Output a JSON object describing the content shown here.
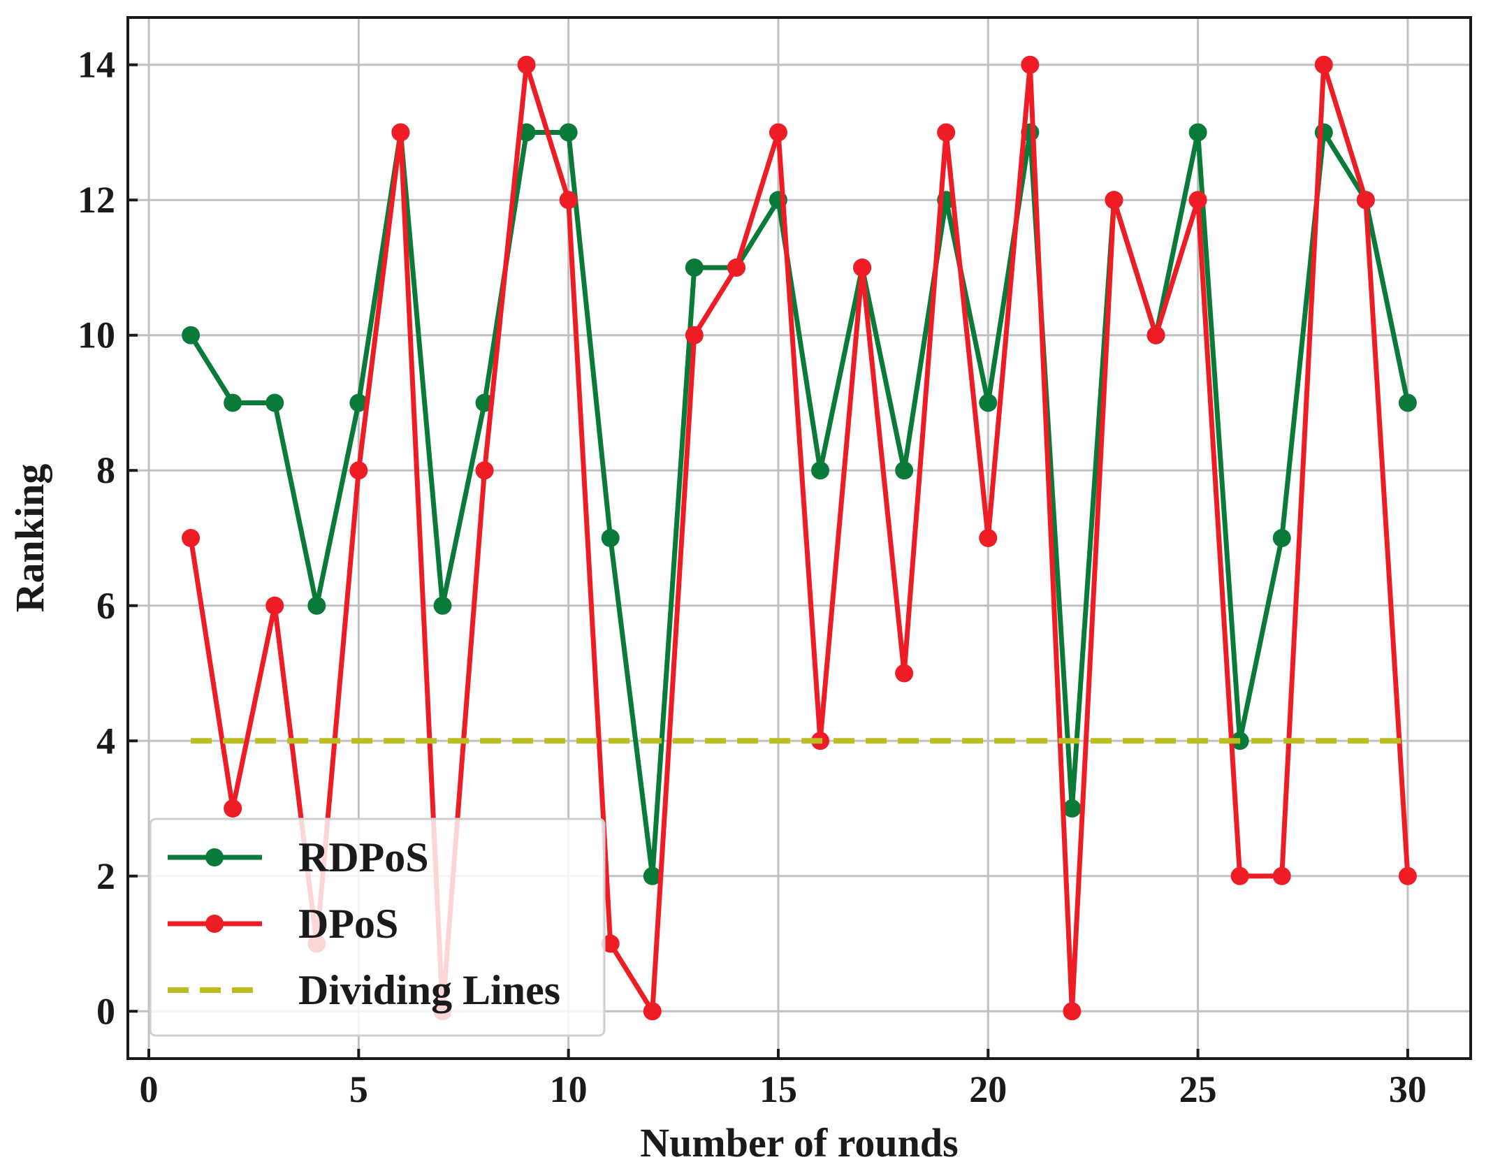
{
  "chart_data": {
    "type": "line",
    "title": "",
    "xlabel": "Number of rounds",
    "ylabel": "Ranking",
    "xlim": [
      -0.5,
      31.5
    ],
    "ylim": [
      -0.7,
      14.7
    ],
    "xticks": [
      0,
      5,
      10,
      15,
      20,
      25,
      30
    ],
    "yticks": [
      0,
      2,
      4,
      6,
      8,
      10,
      12,
      14
    ],
    "grid": true,
    "legend_position": "lower-left",
    "x": [
      1,
      2,
      3,
      4,
      5,
      6,
      7,
      8,
      9,
      10,
      11,
      12,
      13,
      14,
      15,
      16,
      17,
      18,
      19,
      20,
      21,
      22,
      23,
      24,
      25,
      26,
      27,
      28,
      29,
      30
    ],
    "series": [
      {
        "name": "RDPoS",
        "color": "#0a7a38",
        "style": "solid-marker",
        "values": [
          10,
          9,
          9,
          6,
          9,
          13,
          6,
          9,
          13,
          13,
          7,
          2,
          11,
          11,
          12,
          8,
          11,
          8,
          12,
          9,
          13,
          3,
          12,
          10,
          13,
          4,
          7,
          13,
          12,
          9
        ]
      },
      {
        "name": "DPoS",
        "color": "#ee1c25",
        "style": "solid-marker",
        "values": [
          7,
          3,
          6,
          1,
          8,
          13,
          0,
          8,
          14,
          12,
          1,
          0,
          10,
          11,
          13,
          4,
          11,
          5,
          13,
          7,
          14,
          0,
          12,
          10,
          12,
          2,
          2,
          14,
          12,
          2
        ]
      },
      {
        "name": "Dividing Lines",
        "color": "#bcbd22",
        "style": "dashed",
        "x": [
          1,
          30
        ],
        "values": [
          4,
          4
        ]
      }
    ]
  }
}
